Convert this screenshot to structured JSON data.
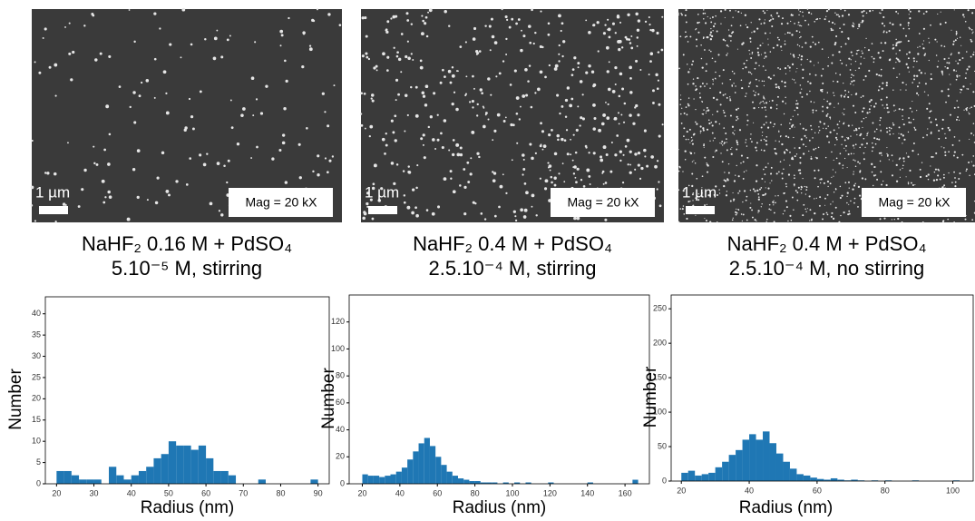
{
  "panels": [
    {
      "scale_bar": "1 µm",
      "magnification": "Mag = 20 kX",
      "caption": [
        "NaHF₂ 0.16 M + PdSO₄",
        "5.10⁻⁵ M, stirring"
      ]
    },
    {
      "scale_bar": "1 µm",
      "magnification": "Mag = 20 kX",
      "caption": [
        "NaHF₂ 0.4 M + PdSO₄",
        "2.5.10⁻⁴ M, stirring"
      ]
    },
    {
      "scale_bar": "1 µm",
      "magnification": "Mag = 20 kX",
      "caption": [
        "NaHF₂ 0.4 M + PdSO₄",
        "2.5.10⁻⁴ M, no stirring"
      ]
    }
  ],
  "chart_data": [
    {
      "type": "histogram",
      "x_label": "Radius (nm)",
      "y_label": "Number",
      "color": "#1f77b4",
      "bins": [
        20,
        22,
        24,
        26,
        28,
        30,
        32,
        34,
        36,
        38,
        40,
        42,
        44,
        46,
        48,
        50,
        52,
        54,
        56,
        58,
        60,
        62,
        64,
        66,
        68,
        70,
        72,
        74,
        76,
        78,
        80,
        82,
        84,
        86,
        88,
        90
      ],
      "values": [
        3,
        3,
        2,
        1,
        1,
        1,
        0,
        4,
        2,
        1,
        2,
        3,
        4,
        6,
        7,
        10,
        9,
        9,
        8,
        9,
        6,
        3,
        3,
        2,
        0,
        0,
        0,
        1,
        0,
        0,
        0,
        0,
        0,
        0,
        1
      ],
      "xlim": [
        17,
        93
      ],
      "xticks": [
        20,
        30,
        40,
        50,
        60,
        70,
        80,
        90
      ],
      "ylim": [
        0,
        44
      ],
      "yticks": [
        0,
        5,
        10,
        15,
        20,
        25,
        30,
        35,
        40
      ]
    },
    {
      "type": "histogram",
      "x_label": "Radius (nm)",
      "y_label": "Number",
      "color": "#1f77b4",
      "bins": [
        20,
        23,
        26,
        29,
        32,
        35,
        38,
        41,
        44,
        47,
        50,
        53,
        56,
        59,
        62,
        65,
        68,
        71,
        74,
        77,
        80,
        83,
        86,
        89,
        92,
        95,
        98,
        101,
        104,
        107,
        110,
        113,
        116,
        119,
        122,
        125,
        128,
        131,
        134,
        137,
        140,
        143,
        146,
        149,
        152,
        155,
        158,
        161,
        164,
        167,
        170
      ],
      "values": [
        7,
        6,
        6,
        5,
        6,
        7,
        9,
        12,
        18,
        24,
        30,
        34,
        28,
        20,
        14,
        9,
        6,
        4,
        3,
        2,
        2,
        1,
        1,
        1,
        0,
        1,
        0,
        1,
        0,
        1,
        0,
        0,
        0,
        1,
        0,
        0,
        0,
        0,
        0,
        0,
        1,
        0,
        0,
        0,
        0,
        0,
        0,
        0,
        3,
        0
      ],
      "xlim": [
        13,
        173
      ],
      "xticks": [
        20,
        40,
        60,
        80,
        100,
        120,
        140,
        160
      ],
      "ylim": [
        0,
        140
      ],
      "yticks": [
        0,
        20,
        40,
        60,
        80,
        100,
        120
      ]
    },
    {
      "type": "histogram",
      "x_label": "Radius (nm)",
      "y_label": "Number",
      "color": "#1f77b4",
      "bins": [
        20,
        22,
        24,
        26,
        28,
        30,
        32,
        34,
        36,
        38,
        40,
        42,
        44,
        46,
        48,
        50,
        52,
        54,
        56,
        58,
        60,
        62,
        64,
        66,
        68,
        70,
        72,
        74,
        76,
        78,
        80,
        82,
        84,
        86,
        88,
        90,
        92,
        94,
        96,
        98,
        100,
        102,
        104
      ],
      "values": [
        12,
        15,
        8,
        10,
        12,
        20,
        28,
        38,
        45,
        60,
        68,
        60,
        72,
        55,
        40,
        28,
        18,
        10,
        8,
        5,
        3,
        2,
        4,
        2,
        1,
        2,
        1,
        0,
        1,
        0,
        1,
        0,
        0,
        0,
        1,
        0,
        0,
        0,
        0,
        0,
        1,
        0
      ],
      "xlim": [
        17,
        106
      ],
      "xticks": [
        20,
        40,
        60,
        80,
        100
      ],
      "ylim": [
        0,
        270
      ],
      "yticks": [
        0,
        50,
        100,
        150,
        200,
        250
      ]
    }
  ]
}
